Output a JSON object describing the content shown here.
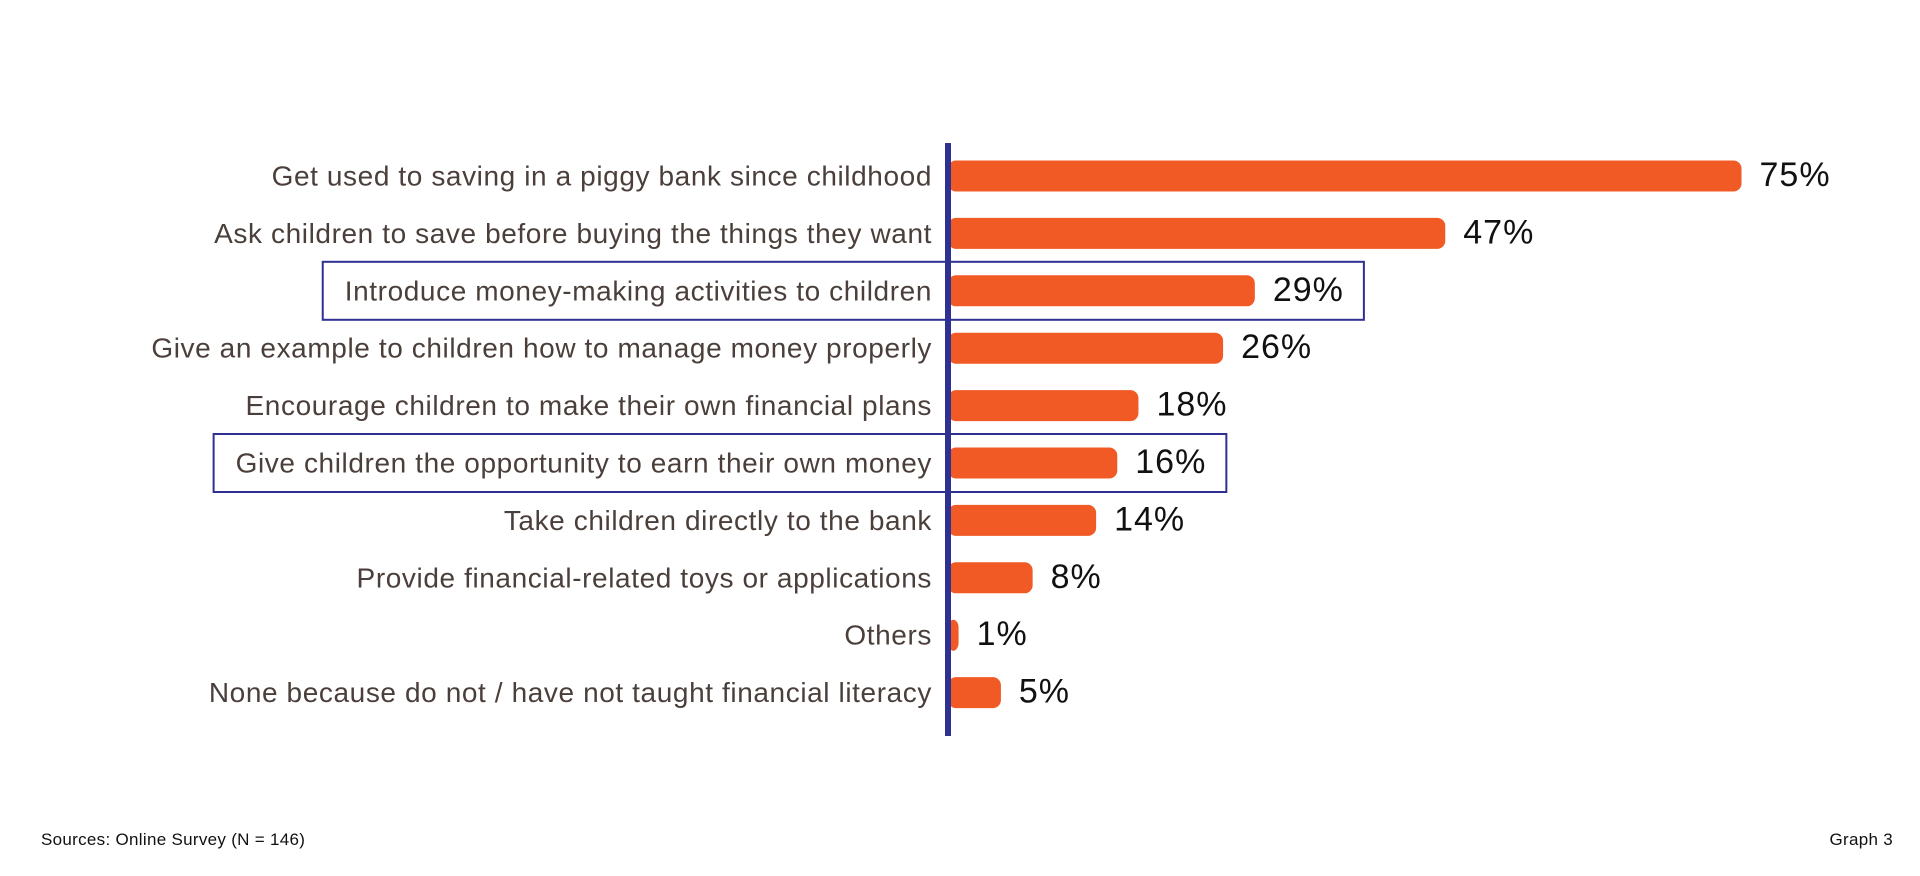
{
  "chart_data": {
    "type": "bar",
    "orientation": "horizontal",
    "categories": [
      "Get used to saving in a piggy bank since childhood",
      "Ask children to save before buying the things they want",
      "Introduce money-making activities to children",
      "Give an example to children how to manage money properly",
      "Encourage children to make their own financial plans",
      "Give children the opportunity to earn their own money",
      "Take children directly to the bank",
      "Provide financial-related toys or applications",
      "Others",
      "None because do not / have not taught financial literacy"
    ],
    "values": [
      75,
      47,
      29,
      26,
      18,
      16,
      14,
      8,
      1,
      5
    ],
    "value_labels": [
      "75%",
      "47%",
      "29%",
      "26%",
      "18%",
      "16%",
      "14%",
      "8%",
      "1%",
      "5%"
    ],
    "highlighted_categories": [
      2,
      5
    ],
    "xlim": [
      0,
      80
    ],
    "grid": false,
    "legend": "none",
    "colors": {
      "bar": "#f15a24",
      "axis": "#2e3192",
      "highlight_box": "#2e3192",
      "category_text": "#4a3f3a",
      "value_text": "#111111"
    }
  },
  "footer": {
    "source": "Sources: Online Survey (N = 146)",
    "graph_label": "Graph 3"
  }
}
